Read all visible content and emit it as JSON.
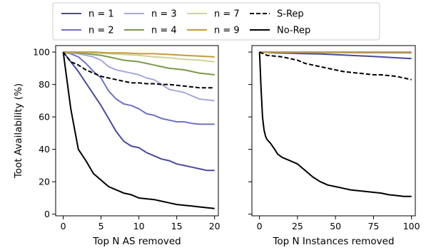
{
  "chart_data": [
    {
      "type": "line",
      "xlabel": "Top N AS removed",
      "ylabel": "Toot Availability (%)",
      "xlim": [
        -1,
        20.5
      ],
      "ylim": [
        -1,
        104
      ],
      "xticks": [
        0,
        5,
        10,
        15,
        20
      ],
      "yticks": [
        0,
        20,
        40,
        60,
        80,
        100
      ],
      "grid": false,
      "legend_position": "top, above plots",
      "series": [
        {
          "name": "n = 1",
          "color": "#4a4a9a",
          "x": [
            0,
            1,
            2,
            3,
            4,
            5,
            6,
            7,
            8,
            9,
            10,
            11,
            12,
            13,
            14,
            15,
            16,
            17,
            18,
            19,
            20
          ],
          "y": [
            100,
            94,
            88,
            81,
            74,
            67,
            59,
            51,
            45,
            42,
            41,
            38,
            36,
            34,
            33,
            31,
            30,
            29,
            28,
            27,
            27
          ]
        },
        {
          "name": "n = 2",
          "color": "#6f72c4",
          "x": [
            0,
            1,
            2,
            3,
            4,
            5,
            6,
            7,
            8,
            9,
            10,
            11,
            12,
            13,
            14,
            15,
            16,
            17,
            18,
            19,
            20
          ],
          "y": [
            100,
            99,
            97,
            93,
            88,
            84,
            76,
            71,
            68,
            67,
            65,
            62,
            61,
            59,
            58,
            57,
            57,
            56,
            55.5,
            55.5,
            55.5
          ]
        },
        {
          "name": "n = 3",
          "color": "#a7a7df",
          "x": [
            0,
            1,
            2,
            3,
            4,
            5,
            6,
            7,
            8,
            9,
            10,
            11,
            12,
            13,
            14,
            15,
            16,
            17,
            18,
            19,
            20
          ],
          "y": [
            100,
            99.5,
            99,
            98,
            97,
            95,
            91,
            89,
            88,
            87,
            86,
            84,
            83,
            80,
            77,
            76,
            75,
            73,
            71,
            70.5,
            70
          ]
        },
        {
          "name": "n = 4",
          "color": "#7a9a4a",
          "x": [
            0,
            1,
            2,
            3,
            4,
            5,
            6,
            7,
            8,
            9,
            10,
            11,
            12,
            13,
            14,
            15,
            16,
            17,
            18,
            19,
            20
          ],
          "y": [
            100,
            100,
            99.5,
            99,
            98.5,
            98,
            97,
            96,
            95,
            94.5,
            94,
            93,
            92,
            91,
            90,
            89.5,
            89,
            88,
            87,
            86.5,
            86
          ]
        },
        {
          "name": "n = 7",
          "color": "#cdd49a",
          "x": [
            0,
            2,
            4,
            6,
            8,
            10,
            12,
            14,
            16,
            18,
            20
          ],
          "y": [
            100,
            100,
            99.5,
            99,
            98.5,
            98,
            97,
            96.5,
            95.5,
            95,
            94
          ]
        },
        {
          "name": "n = 9",
          "color": "#c49a3c",
          "x": [
            0,
            2,
            4,
            6,
            8,
            10,
            12,
            14,
            16,
            18,
            20
          ],
          "y": [
            100,
            100,
            100,
            99.5,
            99.5,
            99,
            99,
            98.5,
            98,
            97.5,
            97
          ]
        },
        {
          "name": "S-Rep",
          "color": "#000000",
          "dashed": true,
          "x": [
            0,
            1,
            2,
            3,
            4,
            5,
            6,
            7,
            8,
            9,
            10,
            11,
            12,
            13,
            14,
            15,
            16,
            17,
            18,
            19,
            20
          ],
          "y": [
            100,
            94,
            92,
            89,
            87,
            85,
            84,
            83,
            82,
            81,
            81,
            80.5,
            80.5,
            80,
            80,
            79.5,
            79,
            78.5,
            78,
            78,
            78
          ]
        },
        {
          "name": "No-Rep",
          "color": "#000000",
          "x": [
            0,
            1,
            2,
            3,
            4,
            5,
            6,
            7,
            8,
            9,
            10,
            11,
            12,
            13,
            14,
            15,
            16,
            17,
            18,
            19,
            20
          ],
          "y": [
            100,
            65,
            40,
            33,
            25,
            21,
            17,
            15,
            13,
            12,
            10,
            9.5,
            9,
            8,
            7,
            6,
            5.5,
            5,
            4.5,
            4,
            3.5
          ]
        }
      ]
    },
    {
      "type": "line",
      "xlabel": "Top N Instances removed",
      "ylabel": "",
      "xlim": [
        -5,
        102.5
      ],
      "ylim": [
        -1,
        104
      ],
      "xticks": [
        0,
        25,
        50,
        75,
        100
      ],
      "yticks": [
        0,
        20,
        40,
        60,
        80,
        100
      ],
      "grid": false,
      "series": [
        {
          "name": "n = 1",
          "color": "#4a4a9a",
          "x": [
            0,
            10,
            20,
            30,
            40,
            50,
            60,
            70,
            80,
            90,
            100
          ],
          "y": [
            100,
            99.5,
            99.3,
            99,
            98.8,
            98.4,
            98,
            97.5,
            97,
            96.5,
            96
          ]
        },
        {
          "name": "n = 2",
          "color": "#6f72c4",
          "x": [
            0,
            25,
            50,
            75,
            100
          ],
          "y": [
            100,
            99.8,
            99.7,
            99.6,
            99.5
          ]
        },
        {
          "name": "n = 3",
          "color": "#a7a7df",
          "x": [
            0,
            25,
            50,
            75,
            100
          ],
          "y": [
            100,
            99.9,
            99.9,
            99.8,
            99.8
          ]
        },
        {
          "name": "n = 4",
          "color": "#7a9a4a",
          "x": [
            0,
            25,
            50,
            75,
            100
          ],
          "y": [
            100,
            100,
            100,
            99.9,
            99.9
          ]
        },
        {
          "name": "n = 7",
          "color": "#cdd49a",
          "x": [
            0,
            50,
            100
          ],
          "y": [
            100,
            100,
            100
          ]
        },
        {
          "name": "n = 9",
          "color": "#c49a3c",
          "x": [
            0,
            50,
            100
          ],
          "y": [
            100,
            100,
            100
          ]
        },
        {
          "name": "S-Rep",
          "color": "#000000",
          "dashed": true,
          "x": [
            0,
            5,
            10,
            15,
            20,
            25,
            30,
            35,
            40,
            45,
            50,
            55,
            60,
            65,
            70,
            75,
            80,
            85,
            90,
            95,
            100
          ],
          "y": [
            100,
            98,
            97.5,
            97,
            96,
            95,
            93,
            92,
            91,
            90,
            89,
            88,
            87.5,
            87,
            86.5,
            86,
            86,
            85.5,
            85,
            84,
            83
          ]
        },
        {
          "name": "No-Rep",
          "color": "#000000",
          "x": [
            0,
            1,
            2,
            3,
            4,
            5,
            7,
            10,
            12,
            15,
            20,
            25,
            30,
            35,
            40,
            45,
            50,
            55,
            60,
            65,
            70,
            75,
            80,
            85,
            90,
            95,
            100
          ],
          "y": [
            100,
            78,
            60,
            52,
            48,
            46,
            44,
            40,
            37,
            35,
            33,
            31,
            27,
            23,
            20,
            18,
            17,
            16,
            15,
            14.5,
            14,
            13.5,
            13,
            12,
            11.5,
            11,
            11
          ]
        }
      ]
    }
  ]
}
